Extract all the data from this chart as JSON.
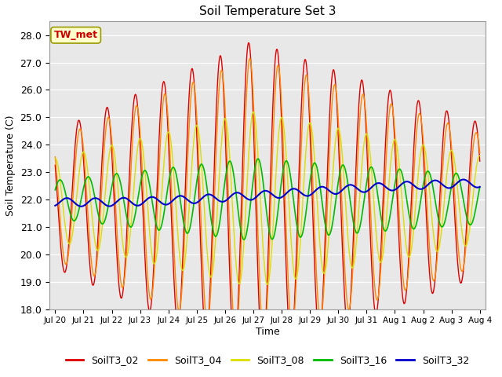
{
  "title": "Soil Temperature Set 3",
  "xlabel": "Time",
  "ylabel": "Soil Temperature (C)",
  "ylim": [
    18.0,
    28.5
  ],
  "yticks": [
    18.0,
    19.0,
    20.0,
    21.0,
    22.0,
    23.0,
    24.0,
    25.0,
    26.0,
    27.0,
    28.0
  ],
  "xtick_labels": [
    "Jul 20",
    "Jul 21",
    "Jul 22",
    "Jul 23",
    "Jul 24",
    "Jul 25",
    "Jul 26",
    "Jul 27",
    "Jul 28",
    "Jul 29",
    "Jul 30",
    "Jul 31",
    "Aug 1",
    "Aug 2",
    "Aug 3",
    "Aug 4"
  ],
  "annotation_text": "TW_met",
  "annotation_color": "#cc0000",
  "annotation_bg": "#ffffcc",
  "fig_bg_color": "#ffffff",
  "plot_bg_color": "#e8e8e8",
  "grid_color": "#ffffff",
  "series": {
    "SoilT3_02": {
      "color": "#dd0000",
      "lw": 1.0
    },
    "SoilT3_04": {
      "color": "#ff8800",
      "lw": 1.0
    },
    "SoilT3_08": {
      "color": "#dddd00",
      "lw": 1.0
    },
    "SoilT3_16": {
      "color": "#00bb00",
      "lw": 1.2
    },
    "SoilT3_32": {
      "color": "#0000cc",
      "lw": 1.5
    }
  },
  "legend_colors": [
    "#dd0000",
    "#ff8800",
    "#dddd00",
    "#00bb00",
    "#0000cc"
  ],
  "legend_labels": [
    "SoilT3_02",
    "SoilT3_04",
    "SoilT3_08",
    "SoilT3_16",
    "SoilT3_32"
  ]
}
